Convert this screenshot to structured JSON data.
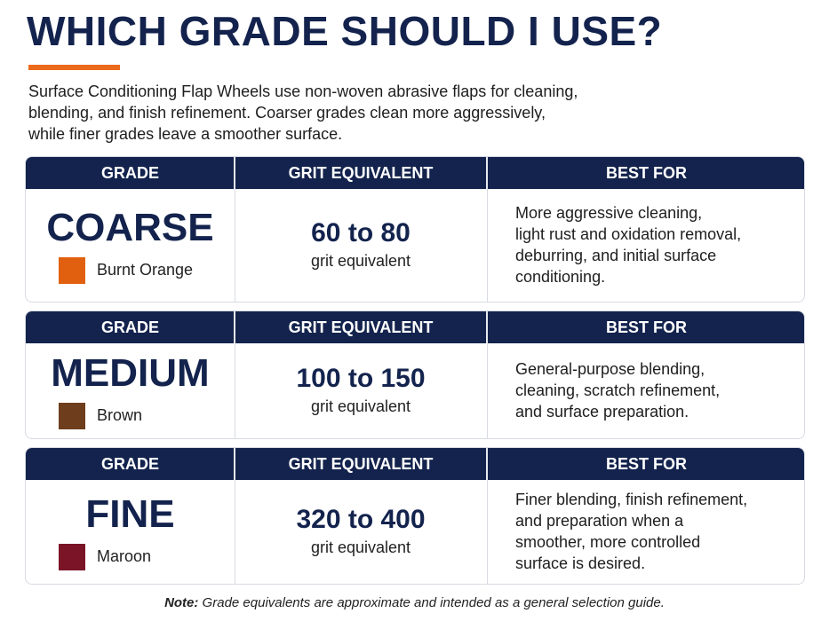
{
  "header": {
    "title": "WHICH GRADE SHOULD I USE?",
    "intro": [
      "Surface Conditioning Flap Wheels use non-woven abrasive flaps for cleaning,",
      "blending, and finish refinement. Coarser grades clean more aggressively,",
      "while finer grades leave a smoother surface."
    ]
  },
  "cards": [
    {
      "columns": [
        "GRADE",
        "GRIT EQUIVALENT",
        "BEST FOR"
      ],
      "grade": "COARSE",
      "swatch": "#e0600f",
      "color_name": "Burnt Orange",
      "grit": "60 to 80",
      "grit_unit": "grit equivalent",
      "best_for": [
        "More aggressive cleaning,",
        "light rust and oxidation removal,",
        "deburring, and initial surface",
        "conditioning."
      ]
    },
    {
      "columns": [
        "GRADE",
        "GRIT EQUIVALENT",
        "BEST FOR"
      ],
      "grade": "MEDIUM",
      "swatch": "#6e3d1c",
      "color_name": "Brown",
      "grit": "100 to 150",
      "grit_unit": "grit equivalent",
      "best_for": [
        "General-purpose blending,",
        "cleaning, scratch refinement,",
        "and surface preparation."
      ]
    },
    {
      "columns": [
        "GRADE",
        "GRIT EQUIVALENT",
        "BEST FOR"
      ],
      "grade": "FINE",
      "swatch": "#7a1426",
      "color_name": "Maroon",
      "grit": "320 to 400",
      "grit_unit": "grit equivalent",
      "best_for": [
        "Finer blending, finish refinement,",
        "and preparation when a",
        "smoother, more controlled",
        "surface is desired."
      ]
    }
  ],
  "note": {
    "label": "Note:",
    "text": " Grade equivalents are approximate and intended as a general selection guide."
  }
}
